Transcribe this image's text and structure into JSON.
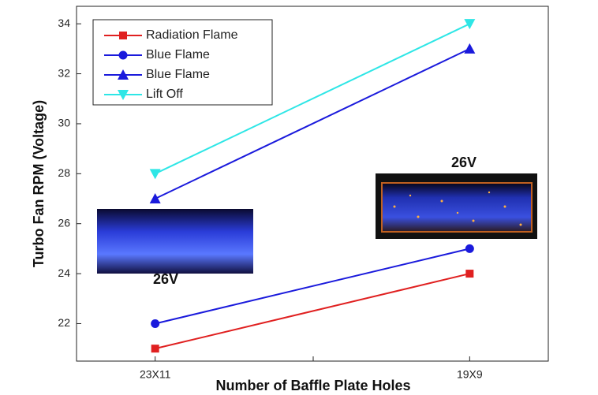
{
  "chart_data": {
    "type": "line",
    "x_label": "Number of Baffle Plate Holes",
    "y_label": "Turbo Fan RPM (Voltage)",
    "categories": [
      "23X11",
      "19X9"
    ],
    "series": [
      {
        "name": "Radiation Flame",
        "color": "#e02020",
        "marker": "square",
        "values": [
          21,
          24
        ]
      },
      {
        "name": "Blue Flame",
        "color": "#1a1adc",
        "marker": "circle",
        "values": [
          22,
          25
        ]
      },
      {
        "name": "Blue Flame",
        "color": "#1a1adc",
        "marker": "triangle-up",
        "values": [
          27,
          33
        ]
      },
      {
        "name": "Lift Off",
        "color": "#2ee6e6",
        "marker": "triangle-down",
        "values": [
          28,
          34
        ]
      }
    ],
    "ylim": [
      20.5,
      34.7
    ],
    "yticks": [
      22,
      24,
      26,
      28,
      30,
      32,
      34
    ],
    "annotations": [
      "26V",
      "26V"
    ],
    "legend": "top-left",
    "grid": false
  }
}
